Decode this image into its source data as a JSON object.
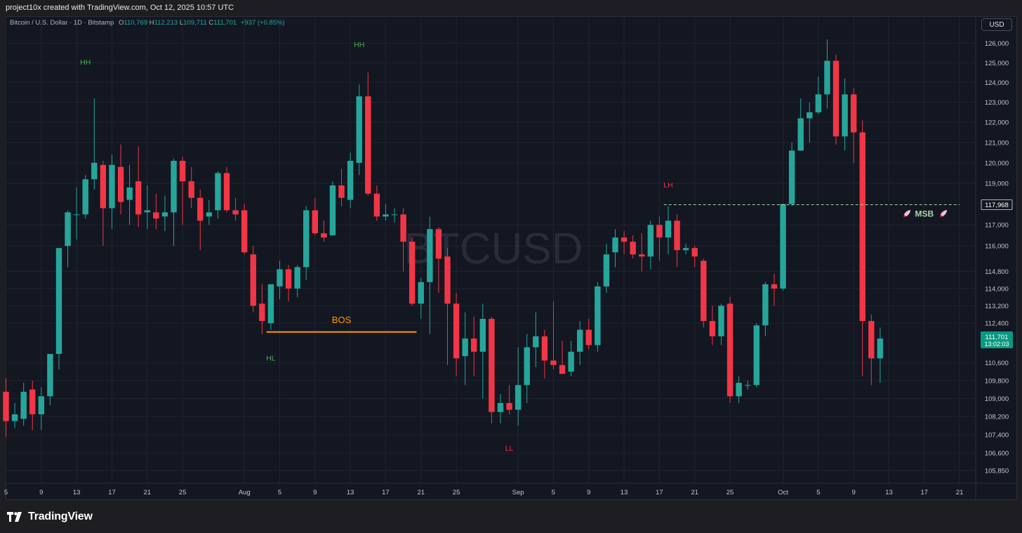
{
  "header": {
    "caption": "project10x created with TradingView.com, Oct 12, 2025 10:57 UTC"
  },
  "legend": {
    "symbol": "Bitcoin / U.S. Dollar · 1D · Bitstamp",
    "o_label": "O",
    "o_value": "110,769",
    "h_label": "H",
    "h_value": "112,213",
    "l_label": "L",
    "l_value": "109,711",
    "c_label": "C",
    "c_value": "111,701",
    "change": "+937 (+0.85%)"
  },
  "currency_button": "USD",
  "footer": {
    "brand": "TradingView"
  },
  "colors": {
    "up": "#26a69a",
    "down": "#f23645",
    "background": "#131722",
    "grid": "#1f2430",
    "hh": "#4caf50",
    "lh": "#f23645",
    "bos": "#ff9800",
    "msb": "#a5d6a7",
    "price_tag": "#089981"
  },
  "chart_data": {
    "type": "candlestick",
    "symbol": "BTCUSD",
    "watermark": "BTCUSD",
    "timeframe": "1D",
    "exchange": "Bitstamp",
    "ylim": [
      105300,
      126600
    ],
    "y_scale": "log",
    "price_ticks": [
      "126,000",
      "125,000",
      "124,000",
      "123,000",
      "122,000",
      "121,000",
      "120,000",
      "119,000",
      "117,000",
      "116,000",
      "114,800",
      "114,000",
      "113,200",
      "112,400",
      "110,600",
      "109,800",
      "109,000",
      "108,200",
      "107,400",
      "106,600",
      "105,850"
    ],
    "x_ticks": [
      "5",
      "9",
      "13",
      "17",
      "21",
      "25",
      "Aug",
      "5",
      "9",
      "13",
      "17",
      "21",
      "25",
      "Sep",
      "5",
      "9",
      "13",
      "17",
      "21",
      "25",
      "Oct",
      "5",
      "9",
      "13",
      "17",
      "21"
    ],
    "x_tick_days": [
      0,
      4,
      8,
      12,
      16,
      20,
      27,
      31,
      35,
      39,
      43,
      47,
      51,
      58,
      62,
      66,
      70,
      74,
      78,
      82,
      88,
      92,
      96,
      100,
      104,
      108
    ],
    "last_price": "111,701",
    "countdown": "13:02:03",
    "candles": [
      {
        "d": 0,
        "o": 109300,
        "h": 109900,
        "l": 107300,
        "c": 108000
      },
      {
        "d": 1,
        "o": 108000,
        "h": 108800,
        "l": 107700,
        "c": 108300
      },
      {
        "d": 2,
        "o": 108100,
        "h": 109700,
        "l": 107800,
        "c": 109300
      },
      {
        "d": 3,
        "o": 109400,
        "h": 109800,
        "l": 107600,
        "c": 108300
      },
      {
        "d": 4,
        "o": 108300,
        "h": 109500,
        "l": 107600,
        "c": 109100
      },
      {
        "d": 5,
        "o": 109100,
        "h": 111000,
        "l": 108700,
        "c": 111000
      },
      {
        "d": 6,
        "o": 111000,
        "h": 115900,
        "l": 110300,
        "c": 115900
      },
      {
        "d": 7,
        "o": 116000,
        "h": 117700,
        "l": 115000,
        "c": 117600
      },
      {
        "d": 8,
        "o": 117500,
        "h": 118800,
        "l": 116300,
        "c": 117500
      },
      {
        "d": 9,
        "o": 117500,
        "h": 119400,
        "l": 117300,
        "c": 119200
      },
      {
        "d": 10,
        "o": 119200,
        "h": 123200,
        "l": 118700,
        "c": 120000
      },
      {
        "d": 11,
        "o": 119900,
        "h": 120100,
        "l": 116000,
        "c": 117800
      },
      {
        "d": 12,
        "o": 117800,
        "h": 120400,
        "l": 116800,
        "c": 119900
      },
      {
        "d": 13,
        "o": 119800,
        "h": 120900,
        "l": 117500,
        "c": 118100
      },
      {
        "d": 14,
        "o": 118200,
        "h": 119900,
        "l": 117000,
        "c": 118800
      },
      {
        "d": 15,
        "o": 119100,
        "h": 120800,
        "l": 116900,
        "c": 117500
      },
      {
        "d": 16,
        "o": 117600,
        "h": 118900,
        "l": 116800,
        "c": 117700
      },
      {
        "d": 17,
        "o": 117600,
        "h": 118500,
        "l": 116800,
        "c": 117300
      },
      {
        "d": 18,
        "o": 117400,
        "h": 118400,
        "l": 116700,
        "c": 117600
      },
      {
        "d": 19,
        "o": 117600,
        "h": 120200,
        "l": 116000,
        "c": 120100
      },
      {
        "d": 20,
        "o": 120100,
        "h": 120300,
        "l": 117000,
        "c": 119100
      },
      {
        "d": 21,
        "o": 119100,
        "h": 119800,
        "l": 117800,
        "c": 118300
      },
      {
        "d": 22,
        "o": 118300,
        "h": 118700,
        "l": 115800,
        "c": 117200
      },
      {
        "d": 23,
        "o": 117400,
        "h": 118200,
        "l": 117000,
        "c": 117600
      },
      {
        "d": 24,
        "o": 117700,
        "h": 119600,
        "l": 117300,
        "c": 119500
      },
      {
        "d": 25,
        "o": 119500,
        "h": 119800,
        "l": 117600,
        "c": 117700
      },
      {
        "d": 26,
        "o": 117700,
        "h": 118300,
        "l": 117200,
        "c": 117500
      },
      {
        "d": 27,
        "o": 117700,
        "h": 118000,
        "l": 115600,
        "c": 115700
      },
      {
        "d": 28,
        "o": 115600,
        "h": 116000,
        "l": 112900,
        "c": 113200
      },
      {
        "d": 29,
        "o": 113300,
        "h": 114200,
        "l": 111900,
        "c": 112500
      },
      {
        "d": 30,
        "o": 112400,
        "h": 114200,
        "l": 112100,
        "c": 114200
      },
      {
        "d": 31,
        "o": 114100,
        "h": 115300,
        "l": 113500,
        "c": 114900
      },
      {
        "d": 32,
        "o": 114900,
        "h": 115100,
        "l": 113400,
        "c": 114000
      },
      {
        "d": 33,
        "o": 114000,
        "h": 115100,
        "l": 113600,
        "c": 115000
      },
      {
        "d": 34,
        "o": 115000,
        "h": 117900,
        "l": 114400,
        "c": 117700
      },
      {
        "d": 35,
        "o": 117700,
        "h": 118300,
        "l": 116500,
        "c": 116600
      },
      {
        "d": 36,
        "o": 116600,
        "h": 117200,
        "l": 116200,
        "c": 116400
      },
      {
        "d": 37,
        "o": 116500,
        "h": 119100,
        "l": 116500,
        "c": 118900
      },
      {
        "d": 38,
        "o": 118900,
        "h": 119700,
        "l": 117900,
        "c": 118300
      },
      {
        "d": 39,
        "o": 118200,
        "h": 120500,
        "l": 117800,
        "c": 120100
      },
      {
        "d": 40,
        "o": 120000,
        "h": 123900,
        "l": 119400,
        "c": 123300
      },
      {
        "d": 41,
        "o": 123300,
        "h": 124500,
        "l": 118400,
        "c": 118500
      },
      {
        "d": 42,
        "o": 118500,
        "h": 118900,
        "l": 117200,
        "c": 117400
      },
      {
        "d": 43,
        "o": 117400,
        "h": 118000,
        "l": 117200,
        "c": 117500
      },
      {
        "d": 44,
        "o": 117500,
        "h": 117800,
        "l": 117100,
        "c": 117500
      },
      {
        "d": 45,
        "o": 117500,
        "h": 117800,
        "l": 114800,
        "c": 116200
      },
      {
        "d": 46,
        "o": 116200,
        "h": 116400,
        "l": 113200,
        "c": 113300
      },
      {
        "d": 47,
        "o": 113300,
        "h": 114500,
        "l": 112600,
        "c": 114300
      },
      {
        "d": 48,
        "o": 114300,
        "h": 117400,
        "l": 111900,
        "c": 116800
      },
      {
        "d": 49,
        "o": 116800,
        "h": 116900,
        "l": 113800,
        "c": 115400
      },
      {
        "d": 50,
        "o": 115500,
        "h": 115900,
        "l": 110500,
        "c": 113300
      },
      {
        "d": 51,
        "o": 113300,
        "h": 113800,
        "l": 110000,
        "c": 110800
      },
      {
        "d": 52,
        "o": 110900,
        "h": 112900,
        "l": 109600,
        "c": 111700
      },
      {
        "d": 53,
        "o": 111700,
        "h": 112700,
        "l": 110000,
        "c": 111100
      },
      {
        "d": 54,
        "o": 111100,
        "h": 113300,
        "l": 109000,
        "c": 112600
      },
      {
        "d": 55,
        "o": 112600,
        "h": 112700,
        "l": 107900,
        "c": 108400
      },
      {
        "d": 56,
        "o": 108400,
        "h": 109200,
        "l": 107900,
        "c": 108800
      },
      {
        "d": 57,
        "o": 108800,
        "h": 109600,
        "l": 108300,
        "c": 108500
      },
      {
        "d": 58,
        "o": 108500,
        "h": 111300,
        "l": 107800,
        "c": 109600
      },
      {
        "d": 59,
        "o": 109600,
        "h": 111900,
        "l": 108800,
        "c": 111300
      },
      {
        "d": 60,
        "o": 111300,
        "h": 112900,
        "l": 110400,
        "c": 111800
      },
      {
        "d": 61,
        "o": 111800,
        "h": 112100,
        "l": 109900,
        "c": 110700
      },
      {
        "d": 62,
        "o": 110700,
        "h": 113400,
        "l": 110300,
        "c": 110500
      },
      {
        "d": 63,
        "o": 110500,
        "h": 111600,
        "l": 110100,
        "c": 110100
      },
      {
        "d": 64,
        "o": 110200,
        "h": 111600,
        "l": 110000,
        "c": 111100
      },
      {
        "d": 65,
        "o": 111100,
        "h": 112500,
        "l": 110500,
        "c": 112100
      },
      {
        "d": 66,
        "o": 112100,
        "h": 112600,
        "l": 111200,
        "c": 111400
      },
      {
        "d": 67,
        "o": 111400,
        "h": 114300,
        "l": 111100,
        "c": 114100
      },
      {
        "d": 68,
        "o": 114100,
        "h": 116100,
        "l": 113800,
        "c": 115600
      },
      {
        "d": 69,
        "o": 115700,
        "h": 116800,
        "l": 115000,
        "c": 116400
      },
      {
        "d": 70,
        "o": 116400,
        "h": 116700,
        "l": 115600,
        "c": 116200
      },
      {
        "d": 71,
        "o": 116200,
        "h": 116500,
        "l": 115400,
        "c": 115600
      },
      {
        "d": 72,
        "o": 115600,
        "h": 116600,
        "l": 114800,
        "c": 115500
      },
      {
        "d": 73,
        "o": 115500,
        "h": 117200,
        "l": 114900,
        "c": 117000
      },
      {
        "d": 74,
        "o": 117000,
        "h": 117400,
        "l": 115300,
        "c": 116400
      },
      {
        "d": 75,
        "o": 116400,
        "h": 117900,
        "l": 115600,
        "c": 117200
      },
      {
        "d": 76,
        "o": 117200,
        "h": 117500,
        "l": 115000,
        "c": 115800
      },
      {
        "d": 77,
        "o": 115800,
        "h": 116100,
        "l": 115600,
        "c": 115900
      },
      {
        "d": 78,
        "o": 115900,
        "h": 116000,
        "l": 115000,
        "c": 115500
      },
      {
        "d": 79,
        "o": 115300,
        "h": 115400,
        "l": 112200,
        "c": 112500
      },
      {
        "d": 80,
        "o": 112500,
        "h": 113200,
        "l": 111400,
        "c": 111800
      },
      {
        "d": 81,
        "o": 111800,
        "h": 113300,
        "l": 111400,
        "c": 113200
      },
      {
        "d": 82,
        "o": 113300,
        "h": 113600,
        "l": 108800,
        "c": 109100
      },
      {
        "d": 83,
        "o": 109100,
        "h": 110000,
        "l": 108800,
        "c": 109700
      },
      {
        "d": 84,
        "o": 109600,
        "h": 109800,
        "l": 109400,
        "c": 109600
      },
      {
        "d": 85,
        "o": 109600,
        "h": 112400,
        "l": 109500,
        "c": 112300
      },
      {
        "d": 86,
        "o": 112300,
        "h": 114300,
        "l": 111800,
        "c": 114200
      },
      {
        "d": 87,
        "o": 114200,
        "h": 114700,
        "l": 113200,
        "c": 114000
      },
      {
        "d": 88,
        "o": 114000,
        "h": 118000,
        "l": 113900,
        "c": 118000
      },
      {
        "d": 89,
        "o": 118000,
        "h": 121000,
        "l": 117900,
        "c": 120600
      },
      {
        "d": 90,
        "o": 120600,
        "h": 123200,
        "l": 120600,
        "c": 122200
      },
      {
        "d": 91,
        "o": 122200,
        "h": 123000,
        "l": 121000,
        "c": 122500
      },
      {
        "d": 92,
        "o": 122500,
        "h": 124300,
        "l": 122400,
        "c": 123400
      },
      {
        "d": 93,
        "o": 123400,
        "h": 126200,
        "l": 122700,
        "c": 125100
      },
      {
        "d": 94,
        "o": 125100,
        "h": 125400,
        "l": 120900,
        "c": 121300
      },
      {
        "d": 95,
        "o": 121300,
        "h": 124200,
        "l": 120600,
        "c": 123400
      },
      {
        "d": 96,
        "o": 123400,
        "h": 123700,
        "l": 120000,
        "c": 121500
      },
      {
        "d": 97,
        "o": 121500,
        "h": 122100,
        "l": 110000,
        "c": 112500
      },
      {
        "d": 98,
        "o": 112500,
        "h": 112800,
        "l": 109600,
        "c": 110800
      },
      {
        "d": 99,
        "o": 110800,
        "h": 112200,
        "l": 109700,
        "c": 111700
      }
    ],
    "annotations": [
      {
        "text": "HH",
        "d": 9,
        "price": 124900,
        "color": "#4caf50"
      },
      {
        "text": "HL",
        "d": 30,
        "price": 110700,
        "color": "#4caf50"
      },
      {
        "text": "HH",
        "d": 40,
        "price": 125800,
        "color": "#4caf50"
      },
      {
        "text": "BOS",
        "d": 38,
        "price": 112400,
        "color": "#ff9800"
      },
      {
        "text": "LL",
        "d": 57,
        "price": 106700,
        "color": "#f23645"
      },
      {
        "text": "LH",
        "d": 75,
        "price": 118800,
        "color": "#f23645"
      },
      {
        "text": "MSB",
        "d": 104,
        "price": 117400,
        "color": "#a5d6a7"
      }
    ],
    "lines": [
      {
        "type": "bos",
        "from_d": 29.5,
        "to_d": 46.5,
        "price": 112000,
        "color": "#ff9800"
      },
      {
        "type": "msb",
        "from_d": 74.5,
        "to_d": 108,
        "price": 117968,
        "color": "#a5d6a7",
        "dashed": true
      }
    ],
    "msb_level": "117,968"
  }
}
